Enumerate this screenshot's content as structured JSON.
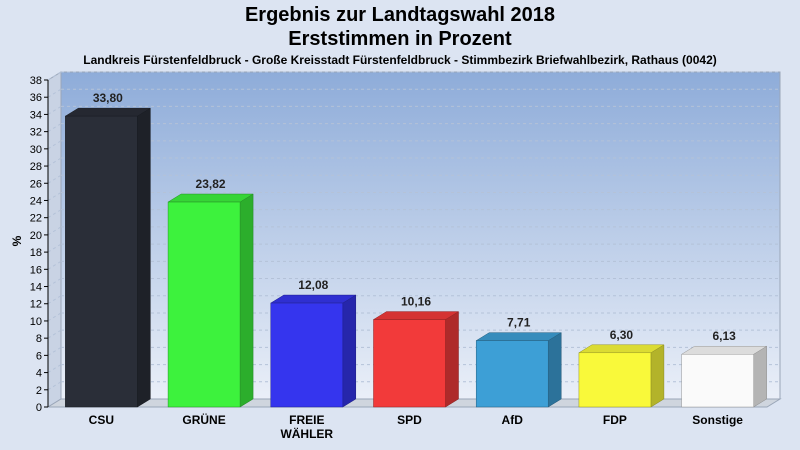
{
  "chart_data": {
    "type": "bar",
    "title": "Ergebnis zur Landtagswahl 2018",
    "subtitle": "Erststimmen in Prozent",
    "caption": "Landkreis Fürstenfeldbruck - Große Kreisstadt Fürstenfeldbruck - Stimmbezirk Briefwahlbezirk, Rathaus (0042)",
    "ylabel": "%",
    "ylim": [
      0,
      38
    ],
    "ytick_step": 2,
    "categories": [
      "CSU",
      "GRÜNE",
      "FREIE WÄHLER",
      "SPD",
      "AfD",
      "FDP",
      "Sonstige"
    ],
    "category_lines": [
      [
        "CSU"
      ],
      [
        "GRÜNE"
      ],
      [
        "FREIE",
        "WÄHLER"
      ],
      [
        "SPD"
      ],
      [
        "AfD"
      ],
      [
        "FDP"
      ],
      [
        "Sonstige"
      ]
    ],
    "values": [
      33.8,
      23.82,
      12.08,
      10.16,
      7.71,
      6.3,
      6.13
    ],
    "value_labels": [
      "33,80",
      "23,82",
      "12,08",
      "10,16",
      "7,71",
      "6,30",
      "6,13"
    ],
    "colors": [
      "#2a2e38",
      "#3df23d",
      "#3535ee",
      "#f23a3a",
      "#3d9fd6",
      "#f9f93a",
      "#fafafa"
    ]
  }
}
